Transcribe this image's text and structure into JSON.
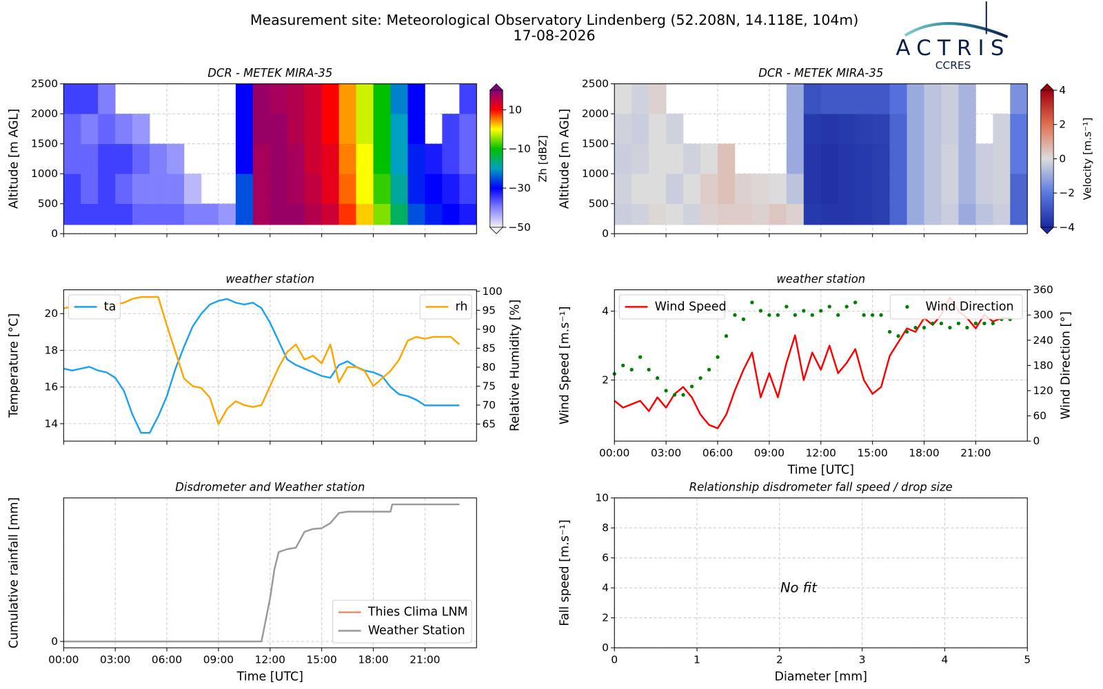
{
  "header": {
    "title": "Measurement site: Meteorological Observatory Lindenberg (52.208N, 14.118E, 104m)",
    "subtitle": "17-08-2026"
  },
  "logo": {
    "name": "ACTRIS",
    "sub": "CCRES"
  },
  "chart_data": [
    {
      "type": "heatmap",
      "title": "DCR - METEK MIRA-35",
      "ylabel": "Altitude [m AGL]",
      "xlim": [
        0,
        24
      ],
      "xticks": [
        0,
        3,
        6,
        9,
        12,
        15,
        18,
        21
      ],
      "xtick_labels": false,
      "ylim": [
        0,
        2500
      ],
      "yticks": [
        0,
        500,
        1000,
        1500,
        2000,
        2500
      ],
      "grid": true,
      "x_edges": [
        0,
        1,
        2,
        3,
        4,
        5,
        6,
        7,
        8,
        9,
        10,
        11,
        12,
        13,
        14,
        15,
        16,
        17,
        18,
        19,
        20,
        21,
        22,
        23,
        24
      ],
      "y_edges": [
        150,
        500,
        1000,
        1500,
        2000,
        2500
      ],
      "z": [
        [
          -35,
          -35,
          -35,
          -35,
          -38,
          -38,
          -38,
          -40,
          -40,
          -42,
          -25,
          17,
          18,
          18,
          16,
          14,
          8,
          2,
          -5,
          -15,
          -25,
          -28,
          -30,
          -32
        ],
        [
          -35,
          -38,
          -35,
          -38,
          -40,
          -40,
          -40,
          -45,
          null,
          null,
          -25,
          17,
          18,
          17,
          15,
          12,
          6,
          0,
          -8,
          -18,
          -28,
          -30,
          -32,
          -35
        ],
        [
          -38,
          -38,
          -35,
          -35,
          -38,
          -40,
          -42,
          null,
          null,
          null,
          -30,
          17,
          18,
          17,
          14,
          12,
          5,
          0,
          -10,
          -20,
          -28,
          -32,
          -35,
          -38
        ],
        [
          -38,
          -40,
          -38,
          -40,
          -42,
          null,
          null,
          null,
          null,
          null,
          -30,
          18,
          18,
          16,
          14,
          10,
          4,
          -2,
          -10,
          -20,
          -30,
          null,
          -35,
          -38
        ],
        [
          -35,
          -35,
          -40,
          null,
          null,
          null,
          null,
          null,
          null,
          null,
          -30,
          18,
          17,
          16,
          14,
          10,
          4,
          -2,
          -10,
          -22,
          -30,
          null,
          null,
          -35
        ]
      ],
      "zlim": [
        -50,
        20
      ],
      "colorbar_label": "Zh [dBZ]",
      "colorbar_ticks": [
        {
          "value": -50,
          "label": "−50"
        },
        {
          "value": -30,
          "label": "−30"
        },
        {
          "value": -10,
          "label": "−10"
        },
        10
      ],
      "colormap": [
        "#f2f2f2",
        "#8080ff",
        "#0000ff",
        "#00a0c0",
        "#00c000",
        "#ffff00",
        "#ff0000",
        "#800080"
      ]
    },
    {
      "type": "heatmap",
      "title": "DCR - METEK MIRA-35",
      "ylabel": "Altitude [m AGL]",
      "xlim": [
        0,
        24
      ],
      "xticks": [
        0,
        3,
        6,
        9,
        12,
        15,
        18,
        21
      ],
      "xtick_labels": false,
      "ylim": [
        0,
        2500
      ],
      "yticks": [
        0,
        500,
        1000,
        1500,
        2000,
        2500
      ],
      "grid": true,
      "x_edges": [
        0,
        1,
        2,
        3,
        4,
        5,
        6,
        7,
        8,
        9,
        10,
        11,
        12,
        13,
        14,
        15,
        16,
        17,
        18,
        19,
        20,
        21,
        22,
        23,
        24
      ],
      "y_edges": [
        150,
        500,
        1000,
        1500,
        2000,
        2500
      ],
      "z": [
        [
          -0.3,
          -0.2,
          0.1,
          0,
          -0.2,
          0.2,
          0.3,
          0.3,
          0.2,
          0.4,
          0.2,
          -3.6,
          -3.7,
          -3.7,
          -3.6,
          -3.5,
          -2.5,
          -1,
          -0.5,
          -0.3,
          -1,
          -0.5,
          -0.3,
          -2.5
        ],
        [
          -0.2,
          0,
          0,
          -0.3,
          0,
          0.3,
          0.5,
          0.2,
          0.1,
          0,
          -0.5,
          -3.7,
          -3.8,
          -3.7,
          -3.6,
          -3.5,
          -2.5,
          -1,
          -0.5,
          -0.2,
          -0.8,
          -0.3,
          -0.2,
          -2.5
        ],
        [
          -0.3,
          -0.2,
          0,
          0,
          -0.2,
          0,
          0.5,
          null,
          null,
          null,
          -1,
          -3.7,
          -3.8,
          -3.7,
          -3.6,
          -3.5,
          -2.5,
          -1,
          -0.5,
          -0.2,
          -0.8,
          -0.3,
          -0.2,
          -2
        ],
        [
          -0.2,
          -0.3,
          0,
          -0.2,
          null,
          null,
          null,
          null,
          null,
          null,
          -1,
          -3.6,
          -3.7,
          -3.6,
          -3.5,
          -3.4,
          -2.5,
          -1,
          -0.5,
          -0.3,
          -0.8,
          null,
          -0.2,
          -2
        ],
        [
          0,
          -0.2,
          0.2,
          null,
          null,
          null,
          null,
          null,
          null,
          null,
          -1,
          -3,
          -2.8,
          -2.8,
          -2.8,
          -2.8,
          -2.2,
          -1,
          -0.5,
          -0.3,
          -0.8,
          null,
          null,
          -1.5
        ]
      ],
      "zlim": [
        -4,
        4
      ],
      "colorbar_label": "Velocity [m.s⁻¹]",
      "colorbar_ticks": [
        {
          "value": -4,
          "label": "−4"
        },
        {
          "value": -2,
          "label": "−2"
        },
        0,
        2,
        4
      ],
      "colormap": [
        "#1a2aa0",
        "#5a78e0",
        "#dcdcdc",
        "#e07050",
        "#a00010"
      ]
    },
    {
      "type": "line",
      "title": "weather station",
      "ylabel": "Temperature [°C]",
      "y2label": "Relative Humidity [%]",
      "xlim": [
        0,
        24
      ],
      "xticks": [
        0,
        3,
        6,
        9,
        12,
        15,
        18,
        21
      ],
      "xtick_labels": false,
      "ylim": [
        13.05,
        21.3
      ],
      "yticks": [
        14,
        16,
        18,
        20
      ],
      "y2lim": [
        60.5,
        100.4
      ],
      "y2ticks": [
        65,
        70,
        75,
        80,
        85,
        90,
        95,
        100
      ],
      "grid": true,
      "x": [
        0,
        0.5,
        1,
        1.5,
        2,
        2.5,
        3,
        3.5,
        4,
        4.5,
        5,
        5.5,
        6,
        6.5,
        7,
        7.5,
        8,
        8.5,
        9,
        9.5,
        10,
        10.5,
        11,
        11.5,
        12,
        12.5,
        13,
        13.5,
        14,
        14.5,
        15,
        15.5,
        16,
        16.5,
        17,
        17.5,
        18,
        18.5,
        19,
        19.5,
        20,
        20.5,
        21,
        21.5,
        22,
        22.5,
        23
      ],
      "series": [
        {
          "name": "ta",
          "color": "#1da2f0",
          "legend": "upper left",
          "values": [
            17.0,
            16.9,
            17.0,
            17.1,
            16.9,
            16.8,
            16.5,
            15.8,
            14.5,
            13.5,
            13.5,
            14.4,
            15.5,
            17.0,
            18.2,
            19.3,
            20.0,
            20.5,
            20.7,
            20.8,
            20.6,
            20.5,
            20.6,
            20.3,
            19.5,
            18.5,
            17.5,
            17.2,
            17.0,
            16.8,
            16.6,
            16.5,
            17.2,
            17.4,
            17.1,
            16.9,
            16.8,
            16.6,
            16.0,
            15.6,
            15.5,
            15.3,
            15.0,
            15.0,
            15.0,
            15.0,
            15.0
          ]
        },
        {
          "name": "rh",
          "color": "#ffa500",
          "axis": "y2",
          "legend": "upper right",
          "values": [
            95.5,
            96,
            95.5,
            95.5,
            96,
            95.5,
            96.5,
            97,
            98,
            98.5,
            98.5,
            98.5,
            91,
            84,
            77,
            75,
            74.5,
            72,
            65,
            69,
            71,
            70,
            69.5,
            70,
            75,
            80,
            84,
            86,
            82,
            83,
            81,
            86,
            76,
            80,
            80,
            79,
            75,
            77,
            79,
            82,
            87,
            88,
            87.5,
            88,
            88,
            88,
            86
          ]
        }
      ]
    },
    {
      "type": "line",
      "title": "weather station",
      "ylabel": "Wind Speed [m.s⁻¹]",
      "y2label": "Wind Direction [°]",
      "xlabel": "Time [UTC]",
      "xlim": [
        0,
        24
      ],
      "xticks": [
        {
          "value": 0,
          "label": "00:00"
        },
        {
          "value": 3,
          "label": "03:00"
        },
        {
          "value": 6,
          "label": "06:00"
        },
        {
          "value": 9,
          "label": "09:00"
        },
        {
          "value": 12,
          "label": "12:00"
        },
        {
          "value": 15,
          "label": "15:00"
        },
        {
          "value": 18,
          "label": "18:00"
        },
        {
          "value": 21,
          "label": "21:00"
        }
      ],
      "ylim": [
        0.23,
        4.62
      ],
      "yticks": [
        2,
        4
      ],
      "y2lim": [
        0,
        360
      ],
      "y2ticks": [
        0,
        60,
        120,
        180,
        240,
        300,
        360
      ],
      "grid": true,
      "x": [
        0,
        0.5,
        1,
        1.5,
        2,
        2.5,
        3,
        3.5,
        4,
        4.5,
        5,
        5.5,
        6,
        6.5,
        7,
        7.5,
        8,
        8.5,
        9,
        9.5,
        10,
        10.5,
        11,
        11.5,
        12,
        12.5,
        13,
        13.5,
        14,
        14.5,
        15,
        15.5,
        16,
        16.5,
        17,
        17.5,
        18,
        18.5,
        19,
        19.5,
        20,
        20.5,
        21,
        21.5,
        22,
        22.5,
        23
      ],
      "series": [
        {
          "name": "Wind Speed",
          "color": "#ff0000",
          "style": "line",
          "legend": "upper left",
          "values": [
            1.4,
            1.2,
            1.3,
            1.4,
            1.1,
            1.5,
            1.2,
            1.6,
            1.8,
            1.5,
            1.0,
            0.7,
            0.6,
            1.0,
            1.7,
            2.3,
            2.8,
            1.5,
            2.2,
            1.5,
            2.5,
            3.3,
            2.0,
            2.8,
            2.3,
            3.0,
            2.2,
            2.5,
            2.9,
            2.0,
            1.6,
            1.8,
            2.7,
            3.1,
            3.5,
            3.4,
            3.8,
            3.6,
            3.9,
            4.4,
            4.0,
            3.8,
            3.5,
            3.9,
            3.7,
            3.8,
            3.8
          ]
        },
        {
          "name": "Wind Direction",
          "color": "#008000",
          "style": "scatter",
          "axis": "y2",
          "legend": "upper right",
          "values": [
            160,
            180,
            170,
            200,
            170,
            150,
            120,
            110,
            110,
            130,
            150,
            170,
            200,
            250,
            300,
            290,
            330,
            310,
            300,
            300,
            320,
            300,
            310,
            300,
            310,
            320,
            300,
            320,
            330,
            300,
            300,
            300,
            260,
            250,
            260,
            270,
            270,
            280,
            280,
            270,
            280,
            270,
            280,
            280,
            280,
            290,
            290
          ]
        }
      ]
    },
    {
      "type": "line",
      "title": "Disdrometer and Weather station",
      "ylabel": "Cumulative rainfall [mm]",
      "xlabel": "Time [UTC]",
      "xlim": [
        0,
        24
      ],
      "xticks": [
        {
          "value": 0,
          "label": "00:00"
        },
        {
          "value": 3,
          "label": "03:00"
        },
        {
          "value": 6,
          "label": "06:00"
        },
        {
          "value": 9,
          "label": "09:00"
        },
        {
          "value": 12,
          "label": "12:00"
        },
        {
          "value": 15,
          "label": "15:00"
        },
        {
          "value": 18,
          "label": "18:00"
        },
        {
          "value": 21,
          "label": "21:00"
        }
      ],
      "ylim": [
        -0.44,
        9.95
      ],
      "yticks": [
        0
      ],
      "grid": true,
      "series": [
        {
          "name": "Thies Clima LNM",
          "color": "#f08c64",
          "legend": "lower right",
          "x": [],
          "values": []
        },
        {
          "name": "Weather Station",
          "color": "#999999",
          "legend": "lower right",
          "x": [
            0,
            11.5,
            11.75,
            12,
            12.25,
            12.5,
            13,
            13.5,
            14,
            14.5,
            15,
            15.5,
            16,
            16.5,
            19,
            19.1,
            23
          ],
          "values": [
            0,
            0,
            1.5,
            3.0,
            5.0,
            6.2,
            6.4,
            6.5,
            7.6,
            7.8,
            7.85,
            8.2,
            8.9,
            9.0,
            9.0,
            9.5,
            9.5
          ]
        }
      ]
    },
    {
      "type": "scatter",
      "title": "Relationship disdrometer fall speed / drop size",
      "xlabel": "Diameter [mm]",
      "ylabel": "Fall speed [m.s⁻¹]",
      "xlim": [
        0,
        5
      ],
      "xticks": [
        0,
        1,
        2,
        3,
        4,
        5
      ],
      "ylim": [
        0,
        10
      ],
      "yticks": [
        0,
        2,
        4,
        6,
        8,
        10
      ],
      "grid": true,
      "annotation": "No fit"
    }
  ]
}
